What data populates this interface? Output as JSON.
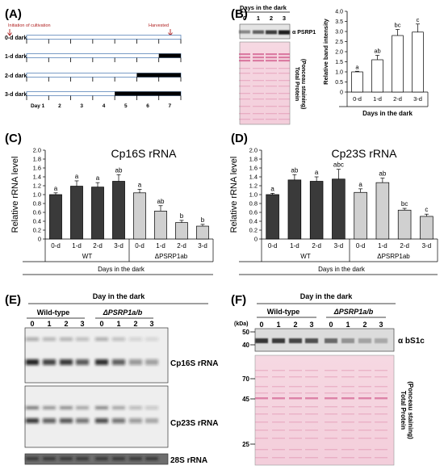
{
  "panels": {
    "A": {
      "label": "(A)",
      "initiation_text": "Initiation of cultivation",
      "harvested_text": "Harvested",
      "rows": [
        "0-d dark",
        "1-d dark",
        "2-d dark",
        "3-d dark"
      ],
      "day_labels": [
        "Day 1",
        "2",
        "3",
        "4",
        "5",
        "6",
        "7"
      ]
    },
    "B": {
      "label": "(B)",
      "blot_title": "Days in the dark",
      "lane_labels": [
        "0",
        "1",
        "2",
        "3"
      ],
      "antibody": "α PSRP1",
      "stain": [
        "Total Protein",
        "(Ponceau staining)"
      ]
    },
    "C": {
      "label": "(C)"
    },
    "D": {
      "label": "(D)"
    },
    "E": {
      "label": "(E)",
      "header": "Day in the dark",
      "group1": "Wild-type",
      "group2": "ΔPSRP1a/b",
      "lanes": [
        "0",
        "1",
        "2",
        "3",
        "0",
        "1",
        "2",
        "3"
      ],
      "bands": [
        "Cp16S rRNA",
        "Cp23S rRNA",
        "28S rRNA"
      ]
    },
    "F": {
      "label": "(F)",
      "header": "Day in the dark",
      "group1": "Wild-type",
      "group2": "ΔPSRP1a/b",
      "lanes": [
        "0",
        "1",
        "2",
        "3",
        "0",
        "1",
        "2",
        "3"
      ],
      "kda_label": "(kDa)",
      "markers_top": [
        "50",
        "40"
      ],
      "antibody": "α bS1c",
      "markers_bottom": [
        "70",
        "45",
        "25"
      ],
      "stain": [
        "Total Protein",
        "(Ponceau staining)"
      ]
    }
  },
  "chart_data": [
    {
      "id": "B",
      "type": "bar",
      "categories": [
        "0-d",
        "1-d",
        "2-d",
        "3-d"
      ],
      "values": [
        1.0,
        1.6,
        2.8,
        2.97
      ],
      "errors": [
        0.03,
        0.22,
        0.3,
        0.4
      ],
      "letters": [
        "a",
        "ab",
        "bc",
        "c"
      ],
      "ylabel": "Relative band intensity",
      "xlabel": "Days in the dark",
      "ylim": [
        0,
        4.0
      ],
      "yticks": [
        "0",
        "0.5",
        "1.0",
        "1.5",
        "2.0",
        "2.5",
        "3.0",
        "3.5",
        "4.0"
      ],
      "colors": [
        "#ffffff"
      ]
    },
    {
      "id": "C",
      "type": "bar",
      "title": "Cp16S rRNA",
      "ylabel": "Relative rRNA level",
      "xlabel": "Days in the dark",
      "categories": [
        "0-d",
        "1-d",
        "2-d",
        "3-d",
        "0-d",
        "1-d",
        "2-d",
        "3-d"
      ],
      "groups": [
        "WT",
        "ΔPSRP1ab"
      ],
      "values": [
        1.0,
        1.19,
        1.17,
        1.3,
        1.04,
        0.63,
        0.37,
        0.29
      ],
      "errors": [
        0.04,
        0.12,
        0.1,
        0.15,
        0.08,
        0.12,
        0.05,
        0.04
      ],
      "letters": [
        "a",
        "a",
        "a",
        "ab",
        "a",
        "ab",
        "b",
        "b"
      ],
      "ylim": [
        0,
        2.0
      ],
      "yticks": [
        "0",
        "0.2",
        "0.4",
        "0.6",
        "0.8",
        "1.0",
        "1.2",
        "1.4",
        "1.6",
        "1.8",
        "2.0"
      ],
      "colors": [
        "#3a3a3a",
        "#d0d0d0"
      ]
    },
    {
      "id": "D",
      "type": "bar",
      "title": "Cp23S rRNA",
      "ylabel": "Relative rRNA level",
      "xlabel": "Days in the dark",
      "categories": [
        "0-d",
        "1-d",
        "2-d",
        "3-d",
        "0-d",
        "1-d",
        "2-d",
        "3-d"
      ],
      "groups": [
        "WT",
        "ΔPSRP1ab"
      ],
      "values": [
        1.0,
        1.33,
        1.3,
        1.35,
        1.05,
        1.27,
        0.65,
        0.51
      ],
      "errors": [
        0.03,
        0.12,
        0.1,
        0.22,
        0.08,
        0.1,
        0.04,
        0.05
      ],
      "letters": [
        "a",
        "ab",
        "a",
        "abc",
        "a",
        "ab",
        "bc",
        "c"
      ],
      "ylim": [
        0,
        2.0
      ],
      "yticks": [
        "0",
        "0.2",
        "0.4",
        "0.6",
        "0.8",
        "1.0",
        "1.2",
        "1.4",
        "1.6",
        "1.8",
        "2.0"
      ],
      "colors": [
        "#3a3a3a",
        "#d0d0d0"
      ]
    }
  ]
}
